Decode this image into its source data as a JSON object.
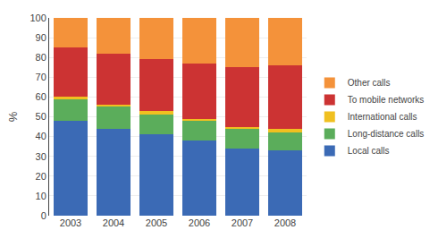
{
  "chart_data": {
    "type": "bar",
    "stacked": true,
    "categories": [
      "2003",
      "2004",
      "2005",
      "2006",
      "2007",
      "2008"
    ],
    "series": [
      {
        "name": "Local calls",
        "color": "#3B6AB5",
        "values": [
          48,
          44,
          41,
          38,
          34,
          33
        ]
      },
      {
        "name": "Long-distance calls",
        "color": "#5BAD5B",
        "values": [
          11,
          11,
          10,
          10,
          10,
          9
        ]
      },
      {
        "name": "International calls",
        "color": "#F0C020",
        "values": [
          1,
          1,
          2,
          1,
          1,
          2
        ]
      },
      {
        "name": "To mobile networks",
        "color": "#CC3333",
        "values": [
          25,
          26,
          26,
          28,
          30,
          32
        ]
      },
      {
        "name": "Other calls",
        "color": "#F4923A",
        "values": [
          15,
          18,
          21,
          23,
          25,
          24
        ]
      }
    ],
    "ylabel": "%",
    "ylim": [
      0,
      100
    ],
    "yticks": [
      0,
      10,
      20,
      30,
      40,
      50,
      60,
      70,
      80,
      90,
      100
    ],
    "grid": true,
    "legend": "right"
  }
}
